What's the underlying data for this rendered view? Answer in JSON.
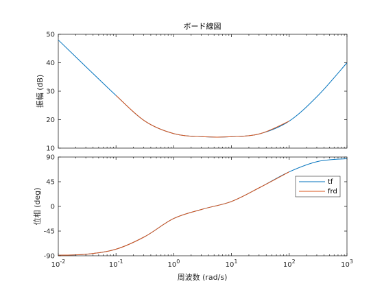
{
  "chart_data": {
    "type": "line",
    "title": "ボード線図",
    "xlabel": "周波数 (rad/s)",
    "x_scale": "log",
    "xlim": [
      0.01,
      1000
    ],
    "x_ticks": [
      {
        "value": 0.01,
        "base": "10",
        "exp": "-2"
      },
      {
        "value": 0.1,
        "base": "10",
        "exp": "-1"
      },
      {
        "value": 1,
        "base": "10",
        "exp": "0"
      },
      {
        "value": 10,
        "base": "10",
        "exp": "1"
      },
      {
        "value": 100,
        "base": "10",
        "exp": "2"
      },
      {
        "value": 1000,
        "base": "10",
        "exp": "3"
      }
    ],
    "legend": {
      "position": "right",
      "entries": [
        "tf",
        "frd"
      ]
    },
    "colors": {
      "tf": "#0072bd",
      "frd": "#d95319"
    },
    "subplots": [
      {
        "name": "magnitude",
        "ylabel": "振幅 (dB)",
        "ylim": [
          10,
          50
        ],
        "y_ticks": [
          "10",
          "20",
          "30",
          "40",
          "50"
        ],
        "series": [
          {
            "name": "tf",
            "x": [
              0.01,
              0.0316,
              0.1,
              0.316,
              1,
              3.16,
              10,
              31.6,
              100,
              316,
              1000
            ],
            "y": [
              48,
              38.2,
              28.5,
              19.5,
              15.1,
              14.0,
              14.0,
              15.1,
              19.5,
              28.5,
              40
            ]
          },
          {
            "name": "frd",
            "x": [
              0.1,
              0.316,
              1,
              3.16,
              10,
              31.6,
              100
            ],
            "y": [
              28.5,
              19.5,
              15.1,
              14.0,
              14.0,
              15.1,
              19.5
            ]
          }
        ]
      },
      {
        "name": "phase",
        "ylabel": "位相 (deg)",
        "ylim": [
          -90,
          90
        ],
        "y_ticks": [
          "-90",
          "-45",
          "0",
          "45",
          "90"
        ],
        "series": [
          {
            "name": "tf",
            "x": [
              0.01,
              0.0316,
              0.1,
              0.316,
              1,
              3.16,
              10,
              31.6,
              100,
              316,
              1000
            ],
            "y": [
              -89,
              -87,
              -78,
              -55,
              -22,
              -5,
              9,
              35,
              63,
              82,
              87
            ]
          },
          {
            "name": "frd",
            "x": [
              0.01,
              0.0316,
              0.1,
              0.316,
              1,
              3.16,
              10,
              31.6,
              100
            ],
            "y": [
              -89,
              -87,
              -78,
              -55,
              -22,
              -5,
              9,
              35,
              63
            ]
          }
        ]
      }
    ]
  }
}
